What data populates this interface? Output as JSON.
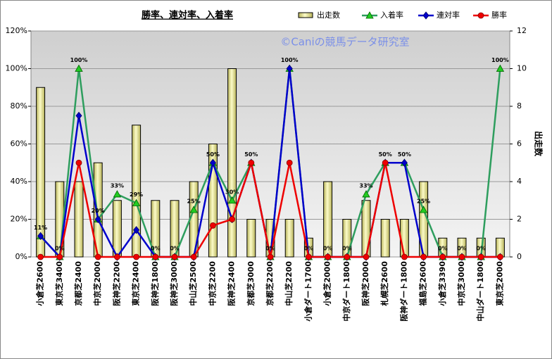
{
  "chart_data": {
    "type": "combo",
    "title": "勝率、連対率、入着率",
    "watermark": "©Caniの競馬データ研究室",
    "y2label": "出走数",
    "legend": "top-right",
    "grid": true,
    "categories": [
      "小倉芝2600",
      "東京芝3400",
      "京都芝2400",
      "中京芝2000",
      "阪神芝2200",
      "東京芝2400",
      "阪神芝1800",
      "阪神芝3000",
      "中山芝2500",
      "中京芝2200",
      "阪神芝2400",
      "京都芝3000",
      "京都芝2200",
      "中山芝2200",
      "小倉ダート1700",
      "小倉芝2000",
      "中京ダート1800",
      "阪神芝2000",
      "札幌芝2600",
      "阪神ダート1800",
      "福島芝2600",
      "小倉芝3390",
      "中京芝3000",
      "中山ダート1800",
      "東京芝2000"
    ],
    "ylim": [
      0,
      120
    ],
    "yticks": [
      {
        "value": 0,
        "label": "0%"
      },
      {
        "value": 20,
        "label": "20%"
      },
      {
        "value": 40,
        "label": "40%"
      },
      {
        "value": 60,
        "label": "60%"
      },
      {
        "value": 80,
        "label": "80%"
      },
      {
        "value": 100,
        "label": "100%"
      },
      {
        "value": 120,
        "label": "120%"
      }
    ],
    "y2lim": [
      0,
      12
    ],
    "y2ticks": [
      0,
      2,
      4,
      6,
      8,
      10,
      12
    ],
    "series": [
      {
        "name": "出走数",
        "kind": "bar",
        "axis": "y2",
        "color": "#f2f09a",
        "values": [
          9,
          4,
          4,
          5,
          3,
          7,
          3,
          3,
          4,
          6,
          10,
          2,
          2,
          2,
          1,
          4,
          2,
          3,
          2,
          2,
          4,
          1,
          1,
          1,
          1
        ]
      },
      {
        "name": "入着率",
        "kind": "line",
        "marker": "triangle",
        "color": "#2e9e5e",
        "marker_color": "#22cc22",
        "values": [
          11.1,
          0,
          100,
          20,
          33.3,
          28.6,
          0,
          0,
          25,
          50,
          30,
          50,
          0,
          100,
          0,
          0,
          0,
          33.3,
          50,
          50,
          25,
          0,
          0,
          0,
          100
        ],
        "value_labels": [
          "11%",
          "0%",
          "100%",
          "20%",
          "33%",
          "29%",
          "0%",
          "0%",
          "25%",
          "50%",
          "30%",
          "50%",
          "0%",
          "100%",
          "0%",
          "0%",
          "0%",
          "33%",
          "50%",
          "50%",
          "25%",
          "0%",
          "0%",
          "0%",
          "100%"
        ]
      },
      {
        "name": "連対率",
        "kind": "line",
        "marker": "diamond",
        "color": "#0000cc",
        "marker_color": "#0000cc",
        "values": [
          11.1,
          0,
          75,
          20,
          0,
          14.3,
          0,
          0,
          0,
          50,
          20,
          50,
          0,
          100,
          0,
          0,
          0,
          0,
          50,
          50,
          0,
          0,
          0,
          0,
          0
        ]
      },
      {
        "name": "勝率",
        "kind": "line",
        "marker": "circle",
        "color": "#ee0000",
        "marker_color": "#ee0000",
        "values": [
          0,
          0,
          50,
          0,
          0,
          0,
          0,
          0,
          0,
          16.7,
          20,
          50,
          0,
          50,
          0,
          0,
          0,
          0,
          50,
          0,
          0,
          0,
          0,
          0,
          0
        ]
      }
    ]
  }
}
